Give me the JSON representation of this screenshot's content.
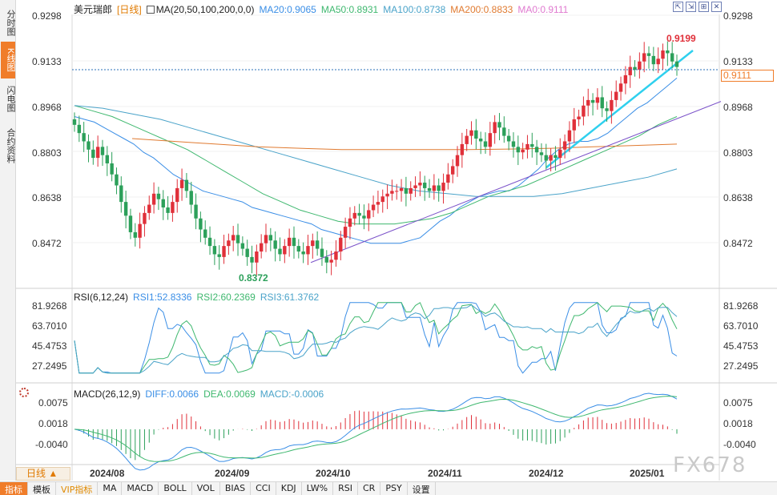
{
  "sidebar": {
    "tabs": [
      {
        "label": "分时图",
        "active": false
      },
      {
        "label": "K线图",
        "active": true
      },
      {
        "label": "闪电图",
        "active": false
      },
      {
        "label": "合约资料",
        "active": false
      }
    ]
  },
  "header": {
    "symbol": "美元瑞郎",
    "period_tag": "[日线]",
    "ma_label": "MA(20,50,100,200,0,0)",
    "ma20": "MA20:0.9065",
    "ma50": "MA50:0.8931",
    "ma100": "MA100:0.8738",
    "ma200": "MA200:0.8833",
    "ma0": "MA0:0.9111"
  },
  "window_buttons": [
    "⇱",
    "⇲",
    "⊞",
    "✕"
  ],
  "colors": {
    "up": "#e0303a",
    "down": "#2ca05a",
    "ma20": "#3a8ee6",
    "ma50": "#3fb86f",
    "ma100": "#4aa3c9",
    "ma200": "#e07a30",
    "trend_cyan": "#2fd0ee",
    "trend_purple": "#7b52c9",
    "accent": "#f07d2a"
  },
  "price_axis": {
    "ticks": [
      "0.9298",
      "0.9133",
      "0.8968",
      "0.8803",
      "0.8638",
      "0.8472"
    ],
    "current": "0.9111",
    "high_label": "0.9199",
    "low_label": "0.8372"
  },
  "rsi": {
    "label": "RSI(6,12,24)",
    "rsi1": "RSI1:52.8336",
    "rsi2": "RSI2:60.2369",
    "rsi3": "RSI3:61.3762",
    "ticks": [
      "81.9268",
      "63.7010",
      "45.4753",
      "27.2495"
    ]
  },
  "macd": {
    "label": "MACD(26,12,9)",
    "diff": "DIFF:0.0066",
    "dea": "DEA:0.0069",
    "macd": "MACD:-0.0006",
    "ticks": [
      "0.0075",
      "0.0018",
      "-0.0040"
    ]
  },
  "x_axis": {
    "labels": [
      "2024/08",
      "2024/09",
      "2024/10",
      "2024/11",
      "2024/12",
      "2025/01"
    ]
  },
  "period_selector": "日线 ▲",
  "bottom_tabs": [
    {
      "label": "指标",
      "selected": true
    },
    {
      "label": "模板",
      "selected": false
    },
    {
      "label": "VIP指标",
      "selected": false,
      "vip": true
    },
    {
      "label": "MA",
      "selected": false
    },
    {
      "label": "MACD",
      "selected": false
    },
    {
      "label": "BOLL",
      "selected": false
    },
    {
      "label": "VOL",
      "selected": false
    },
    {
      "label": "BIAS",
      "selected": false
    },
    {
      "label": "CCI",
      "selected": false
    },
    {
      "label": "KDJ",
      "selected": false
    },
    {
      "label": "LW%",
      "selected": false
    },
    {
      "label": "RSI",
      "selected": false
    },
    {
      "label": "CR",
      "selected": false
    },
    {
      "label": "PSY",
      "selected": false
    },
    {
      "label": "设置",
      "selected": false
    }
  ],
  "watermark": "FX678",
  "chart_data": {
    "type": "candlestick",
    "x_range": [
      "2024/07",
      "2025/01"
    ],
    "ylim": [
      0.835,
      0.9298
    ],
    "current_price": 0.9111,
    "high": 0.9199,
    "low": 0.8372,
    "closes": [
      0.89,
      0.887,
      0.884,
      0.881,
      0.878,
      0.882,
      0.879,
      0.876,
      0.872,
      0.868,
      0.862,
      0.857,
      0.851,
      0.849,
      0.854,
      0.858,
      0.861,
      0.865,
      0.863,
      0.86,
      0.858,
      0.862,
      0.867,
      0.87,
      0.866,
      0.861,
      0.856,
      0.852,
      0.849,
      0.846,
      0.843,
      0.842,
      0.846,
      0.848,
      0.85,
      0.847,
      0.845,
      0.842,
      0.84,
      0.844,
      0.847,
      0.85,
      0.848,
      0.845,
      0.843,
      0.846,
      0.849,
      0.846,
      0.844,
      0.843,
      0.846,
      0.848,
      0.845,
      0.842,
      0.84,
      0.841,
      0.844,
      0.849,
      0.853,
      0.856,
      0.858,
      0.857,
      0.856,
      0.859,
      0.861,
      0.862,
      0.864,
      0.865,
      0.866,
      0.866,
      0.867,
      0.865,
      0.867,
      0.868,
      0.869,
      0.867,
      0.866,
      0.868,
      0.866,
      0.869,
      0.872,
      0.875,
      0.879,
      0.883,
      0.886,
      0.888,
      0.885,
      0.884,
      0.882,
      0.887,
      0.891,
      0.889,
      0.886,
      0.884,
      0.882,
      0.88,
      0.881,
      0.883,
      0.882,
      0.88,
      0.879,
      0.877,
      0.879,
      0.878,
      0.881,
      0.884,
      0.888,
      0.892,
      0.893,
      0.897,
      0.899,
      0.898,
      0.9,
      0.896,
      0.895,
      0.899,
      0.902,
      0.905,
      0.908,
      0.911,
      0.91,
      0.913,
      0.916,
      0.915,
      0.912,
      0.914,
      0.917,
      0.916,
      0.913,
      0.911
    ],
    "ma20": [
      0.893,
      0.892,
      0.891,
      0.889,
      0.887,
      0.885,
      0.883,
      0.88,
      0.878,
      0.875,
      0.872,
      0.87,
      0.868,
      0.866,
      0.865,
      0.864,
      0.863,
      0.862,
      0.86,
      0.859,
      0.858,
      0.857,
      0.856,
      0.855,
      0.854,
      0.852,
      0.851,
      0.85,
      0.849,
      0.848,
      0.847,
      0.847,
      0.847,
      0.847,
      0.848,
      0.849,
      0.852,
      0.855,
      0.857,
      0.86,
      0.862,
      0.864,
      0.865,
      0.866,
      0.866,
      0.868,
      0.871,
      0.874,
      0.878,
      0.881,
      0.883,
      0.884,
      0.884,
      0.885,
      0.887,
      0.89,
      0.893,
      0.896,
      0.898,
      0.901,
      0.904,
      0.907
    ],
    "ma50": [
      0.897,
      0.895,
      0.893,
      0.89,
      0.887,
      0.884,
      0.881,
      0.877,
      0.873,
      0.869,
      0.865,
      0.862,
      0.859,
      0.857,
      0.855,
      0.854,
      0.854,
      0.854,
      0.855,
      0.856,
      0.858,
      0.861,
      0.864,
      0.866,
      0.868,
      0.871,
      0.874,
      0.877,
      0.88,
      0.883,
      0.886,
      0.89,
      0.893
    ],
    "ma100": [
      0.897,
      0.896,
      0.894,
      0.892,
      0.889,
      0.886,
      0.883,
      0.88,
      0.877,
      0.874,
      0.871,
      0.868,
      0.866,
      0.865,
      0.864,
      0.864,
      0.864,
      0.865,
      0.867,
      0.869,
      0.871,
      0.874
    ],
    "ma200": [
      0.885,
      0.884,
      0.883,
      0.882,
      0.8815,
      0.881,
      0.881,
      0.881,
      0.881,
      0.8812,
      0.8815,
      0.882,
      0.8825,
      0.883
    ],
    "trendlines": [
      {
        "name": "cyan support",
        "from": [
          "2024/12",
          0.874
        ],
        "to": [
          "2025/01",
          0.916
        ]
      },
      {
        "name": "purple support",
        "from": [
          "2024/09",
          0.841
        ],
        "to": [
          "2025/01",
          0.9
        ]
      }
    ],
    "rsi_range": [
      27.2495,
      81.9268
    ],
    "macd_range": [
      -0.004,
      0.0075
    ]
  }
}
